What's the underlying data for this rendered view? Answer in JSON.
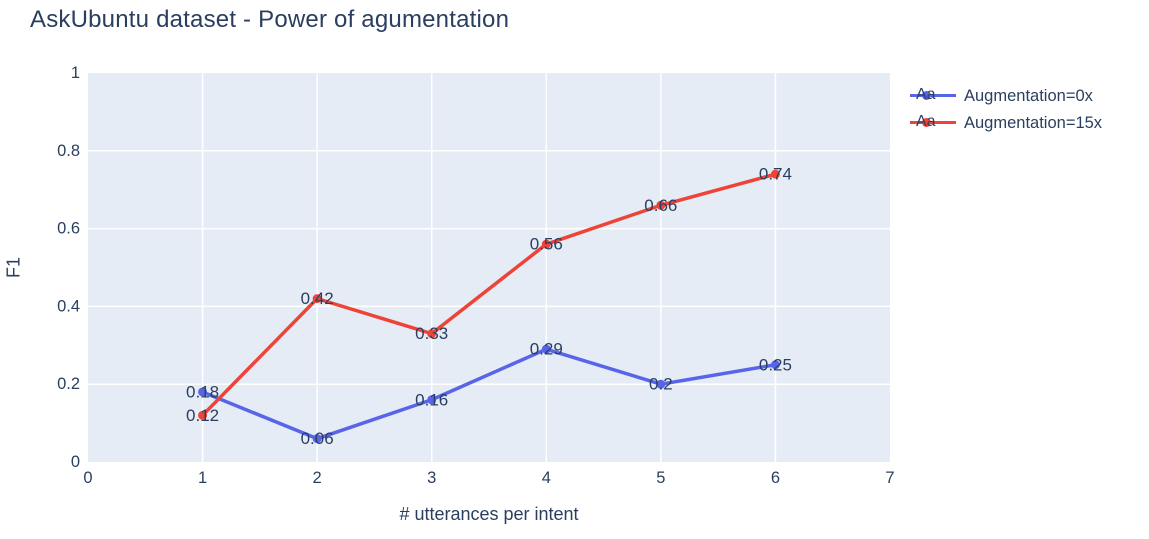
{
  "title": "AskUbuntu dataset - Power of agumentation",
  "colors": {
    "background": "#ffffff",
    "plot_background": "#e5ecf6",
    "grid": "#ffffff",
    "text": "#2a3f5f",
    "series_blue": "#5865e8",
    "series_red": "#ee4438"
  },
  "legend": {
    "items": [
      {
        "swatch_text": "Aa",
        "label": "Augmentation=0x",
        "color": "#5865e8"
      },
      {
        "swatch_text": "Aa",
        "label": "Augmentation=15x",
        "color": "#ee4438"
      }
    ]
  },
  "chart_data": {
    "type": "line",
    "title": "AskUbuntu dataset - Power of agumentation",
    "xlabel": "# utterances per intent",
    "ylabel": "F1",
    "xlim": [
      0,
      7
    ],
    "ylim": [
      0,
      1
    ],
    "x_ticks": [
      0,
      1,
      2,
      3,
      4,
      5,
      6,
      7
    ],
    "x_tick_labels": [
      "0",
      "1",
      "2",
      "3",
      "4",
      "5",
      "6",
      "7"
    ],
    "y_ticks": [
      0,
      0.2,
      0.4,
      0.6,
      0.8,
      1
    ],
    "y_tick_labels": [
      "0",
      "0.2",
      "0.4",
      "0.6",
      "0.8",
      "1"
    ],
    "grid": true,
    "legend_position": "top-right-outside",
    "x": [
      1,
      2,
      3,
      4,
      5,
      6
    ],
    "series": [
      {
        "name": "Augmentation=0x",
        "color": "#5865e8",
        "values": [
          0.18,
          0.06,
          0.16,
          0.29,
          0.2,
          0.25
        ],
        "labels": [
          "0.18",
          "0.06",
          "0.16",
          "0.29",
          "0.2",
          "0.25"
        ]
      },
      {
        "name": "Augmentation=15x",
        "color": "#ee4438",
        "values": [
          0.12,
          0.42,
          0.33,
          0.56,
          0.66,
          0.74
        ],
        "labels": [
          "0.12",
          "0.42",
          "0.33",
          "0.56",
          "0.66",
          "0.74"
        ]
      }
    ]
  }
}
